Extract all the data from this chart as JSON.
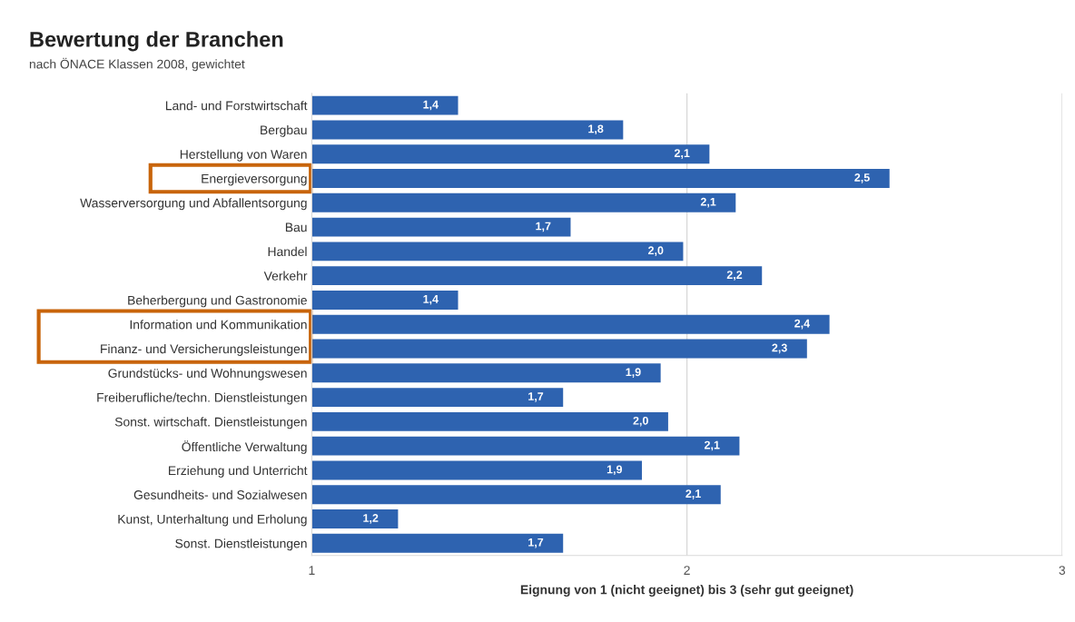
{
  "chart_data": {
    "type": "bar",
    "orientation": "horizontal",
    "title": "Bewertung der Branchen",
    "subtitle": "nach ÖNACE Klassen 2008, gewichtet",
    "xlabel": "Eignung von 1 (nicht geeignet) bis 3 (sehr gut geeignet)",
    "categories": [
      "Land- und Forstwirtschaft",
      "Bergbau",
      "Herstellung von Waren",
      "Energieversorgung",
      "Wasserversorgung und Abfallentsorgung",
      "Bau",
      "Handel",
      "Verkehr",
      "Beherbergung und Gastronomie",
      "Information und Kommunikation",
      "Finanz- und Versicherungsleistungen",
      "Grundstücks- und Wohnungswesen",
      "Freiberufliche/techn. Dienstleistungen",
      "Sonst. wirtschaft. Dienstleistungen",
      "Öffentliche Verwaltung",
      "Erziehung und Unterricht",
      "Gesundheits- und Sozialwesen",
      "Kunst, Unterhaltung und Erholung",
      "Sonst. Dienstleistungen"
    ],
    "values": [
      1.39,
      1.83,
      2.06,
      2.54,
      2.13,
      1.69,
      1.99,
      2.2,
      1.39,
      2.38,
      2.32,
      1.93,
      1.67,
      1.95,
      2.14,
      1.88,
      2.09,
      1.23,
      1.67
    ],
    "value_labels": [
      "1,4",
      "1,8",
      "2,1",
      "2,5",
      "2,1",
      "1,7",
      "2,0",
      "2,2",
      "1,4",
      "2,4",
      "2,3",
      "1,9",
      "1,7",
      "2,0",
      "2,1",
      "1,9",
      "2,1",
      "1,2",
      "1,7"
    ],
    "color": "#2e63b0",
    "xlim": [
      1,
      3
    ],
    "xticks": [
      1,
      2,
      3
    ],
    "grid": "x"
  }
}
